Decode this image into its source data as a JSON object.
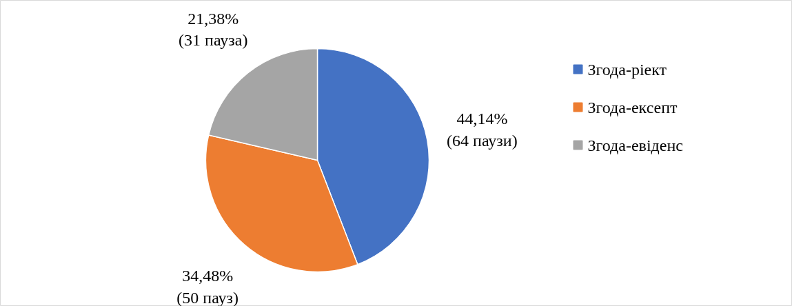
{
  "chart_data": {
    "type": "pie",
    "categories": [
      "Згода-ріект",
      "Згода-ексепт",
      "Згода-евіденс"
    ],
    "values": [
      64,
      50,
      31
    ],
    "colors": [
      "#4472c4",
      "#ed7d31",
      "#a5a5a5"
    ],
    "value_labels": [
      "44,14%\n(64 паузи)",
      "34,48%\n(50 пауз)",
      "21,38%\n(31 пауза)"
    ],
    "legend": "right"
  }
}
